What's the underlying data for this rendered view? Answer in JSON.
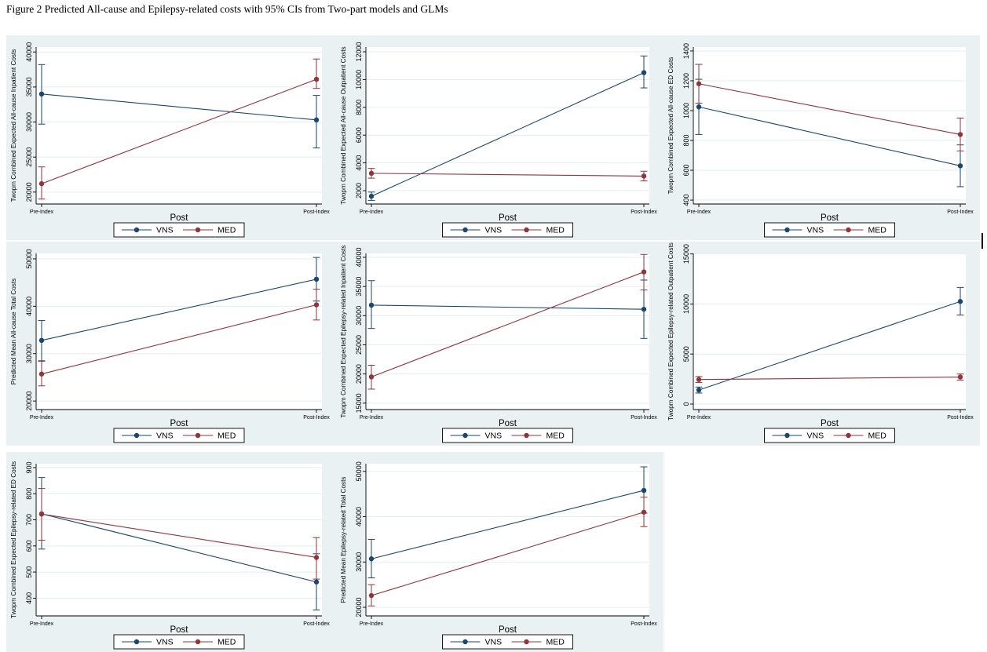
{
  "page": {
    "title": "Figure 2 Predicted All-cause and Epilepsy-related costs with 95% CIs from Two-part models and GLMs"
  },
  "colors": {
    "vns": "#1a476f",
    "med": "#90353b",
    "panel_bg": "#eaf1f3",
    "grid": "#e3edf0",
    "axis": "#000000",
    "plot_bg": "#ffffff"
  },
  "legend": {
    "entries": [
      "VNS",
      "MED"
    ],
    "position": "bottom-center"
  },
  "chart_data": [
    {
      "type": "line",
      "title": "",
      "ylabel": "Twopm Combined Expected All-cause Inpatient Costs",
      "xlabel": "Post",
      "x_categories": [
        "Pre-Index",
        "Post-Index"
      ],
      "yticks": [
        20000,
        25000,
        30000,
        35000,
        40000
      ],
      "ylim": [
        18300,
        40700
      ],
      "grid": true,
      "series": [
        {
          "name": "VNS",
          "values": [
            34000,
            30300
          ],
          "ci_low": [
            29700,
            26300
          ],
          "ci_high": [
            38200,
            33800
          ]
        },
        {
          "name": "MED",
          "values": [
            21200,
            36100
          ],
          "ci_low": [
            19000,
            34800
          ],
          "ci_high": [
            23600,
            39000
          ]
        }
      ]
    },
    {
      "type": "line",
      "title": "",
      "ylabel": "Twopm Combined Expected All-cause Outpatient Costs",
      "xlabel": "Post",
      "x_categories": [
        "Pre-Index",
        "Post-Index"
      ],
      "yticks": [
        2000,
        4000,
        6000,
        8000,
        10000,
        12000
      ],
      "ylim": [
        1040,
        12340
      ],
      "grid": true,
      "series": [
        {
          "name": "VNS",
          "values": [
            1600,
            10500
          ],
          "ci_low": [
            1300,
            9400
          ],
          "ci_high": [
            1900,
            11700
          ]
        },
        {
          "name": "MED",
          "values": [
            3250,
            3050
          ],
          "ci_low": [
            2900,
            2700
          ],
          "ci_high": [
            3600,
            3400
          ]
        }
      ]
    },
    {
      "type": "line",
      "title": "",
      "ylabel": "Twopm Combined Expected All-cause ED Costs",
      "xlabel": "Post",
      "x_categories": [
        "Pre-Index",
        "Post-Index"
      ],
      "yticks": [
        400,
        600,
        800,
        1000,
        1200,
        1400
      ],
      "ylim": [
        374,
        1426
      ],
      "grid": true,
      "series": [
        {
          "name": "VNS",
          "values": [
            1025,
            630
          ],
          "ci_low": [
            840,
            490
          ],
          "ci_high": [
            1210,
            770
          ]
        },
        {
          "name": "MED",
          "values": [
            1180,
            840
          ],
          "ci_low": [
            1050,
            730
          ],
          "ci_high": [
            1310,
            950
          ]
        }
      ]
    },
    {
      "type": "line",
      "title": "",
      "ylabel": "Predicted Mean All-cause Total Costs",
      "xlabel": "Post",
      "x_categories": [
        "Pre-Index",
        "Post-Index"
      ],
      "yticks": [
        20000,
        30000,
        40000,
        50000
      ],
      "ylim": [
        18200,
        51150
      ],
      "grid": true,
      "series": [
        {
          "name": "VNS",
          "values": [
            32800,
            45700
          ],
          "ci_low": [
            28500,
            41100
          ],
          "ci_high": [
            37000,
            50300
          ]
        },
        {
          "name": "MED",
          "values": [
            25700,
            40300
          ],
          "ci_low": [
            23200,
            37100
          ],
          "ci_high": [
            28400,
            43600
          ]
        }
      ]
    },
    {
      "type": "line",
      "title": "",
      "ylabel": "Twopm Combined Expected Epilepsy-related Inpatient Costs",
      "xlabel": "Post",
      "x_categories": [
        "Pre-Index",
        "Post-Index"
      ],
      "yticks": [
        15000,
        20000,
        25000,
        30000,
        35000,
        40000
      ],
      "ylim": [
        13900,
        40670
      ],
      "grid": true,
      "series": [
        {
          "name": "VNS",
          "values": [
            31800,
            31100
          ],
          "ci_low": [
            27800,
            26100
          ],
          "ci_high": [
            36000,
            36100
          ]
        },
        {
          "name": "MED",
          "values": [
            19500,
            37500
          ],
          "ci_low": [
            17400,
            34400
          ],
          "ci_high": [
            21500,
            40500
          ]
        }
      ]
    },
    {
      "type": "line",
      "title": "",
      "ylabel": "Twopm Combined Expected Epilepsy-related Outpatient Costs",
      "xlabel": "Post",
      "x_categories": [
        "Pre-Index",
        "Post-Index"
      ],
      "yticks": [
        0,
        5000,
        10000,
        15000
      ],
      "ylim": [
        -550,
        15050
      ],
      "grid": true,
      "series": [
        {
          "name": "VNS",
          "values": [
            1400,
            10250
          ],
          "ci_low": [
            1100,
            8900
          ],
          "ci_high": [
            1700,
            11650
          ]
        },
        {
          "name": "MED",
          "values": [
            2450,
            2700
          ],
          "ci_low": [
            2150,
            2400
          ],
          "ci_high": [
            2750,
            3000
          ]
        }
      ]
    },
    {
      "type": "line",
      "title": "",
      "ylabel": "Twopm Combined Expected Epilepsy-related ED Costs",
      "xlabel": "Post",
      "x_categories": [
        "Pre-Index",
        "Post-Index"
      ],
      "yticks": [
        400,
        500,
        600,
        700,
        800,
        900
      ],
      "ylim": [
        332,
        915
      ],
      "grid": true,
      "series": [
        {
          "name": "VNS",
          "values": [
            723,
            462
          ],
          "ci_low": [
            588,
            355
          ],
          "ci_high": [
            862,
            570
          ]
        },
        {
          "name": "MED",
          "values": [
            722,
            556
          ],
          "ci_low": [
            622,
            473
          ],
          "ci_high": [
            820,
            632
          ]
        }
      ]
    },
    {
      "type": "line",
      "title": "",
      "ylabel": "Predicted Mean Epilepsy-related Total Costs",
      "xlabel": "Post",
      "x_categories": [
        "Pre-Index",
        "Post-Index"
      ],
      "yticks": [
        20000,
        30000,
        40000,
        50000
      ],
      "ylim": [
        18100,
        51700
      ],
      "grid": true,
      "series": [
        {
          "name": "VNS",
          "values": [
            30700,
            45800
          ],
          "ci_low": [
            26500,
            40800
          ],
          "ci_high": [
            35000,
            51000
          ]
        },
        {
          "name": "MED",
          "values": [
            22600,
            41000
          ],
          "ci_low": [
            20300,
            37800
          ],
          "ci_high": [
            25000,
            44300
          ]
        }
      ]
    }
  ]
}
